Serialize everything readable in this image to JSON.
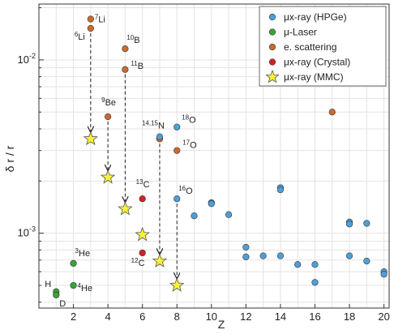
{
  "chart_data": {
    "type": "scatter",
    "xlabel": "Z",
    "ylabel": "δ r / r",
    "xlim": [
      0,
      20.3
    ],
    "ylim": [
      0.00037,
      0.021
    ],
    "yscale": "log",
    "grid": true,
    "x_ticks": [
      2,
      4,
      6,
      8,
      10,
      12,
      14,
      16,
      18,
      20
    ],
    "y_ticks": [
      {
        "value": 0.001,
        "base": "10",
        "exp": "-3"
      },
      {
        "value": 0.01,
        "base": "10",
        "exp": "-2"
      }
    ],
    "legend_position": "top-right",
    "colors": {
      "hpge": "#4e9fd9",
      "laser": "#3aa33a",
      "escatter": "#cc6a2e",
      "crystal": "#d62020",
      "mmc": "#f5f23a",
      "grid": "#e3e3e3",
      "axis": "#333333"
    },
    "series": [
      {
        "key": "hpge",
        "name": "μx-ray (HPGe)",
        "marker": "circle",
        "points": [
          {
            "x": 7,
            "y": 0.0036
          },
          {
            "x": 8,
            "y": 0.0041
          },
          {
            "x": 8,
            "y": 0.00158
          },
          {
            "x": 9,
            "y": 0.00126
          },
          {
            "x": 10,
            "y": 0.0015
          },
          {
            "x": 10,
            "y": 0.00148
          },
          {
            "x": 11,
            "y": 0.00128
          },
          {
            "x": 12,
            "y": 0.00083
          },
          {
            "x": 12,
            "y": 0.00073
          },
          {
            "x": 13,
            "y": 0.00074
          },
          {
            "x": 14,
            "y": 0.00183
          },
          {
            "x": 14,
            "y": 0.00178
          },
          {
            "x": 14,
            "y": 0.00074
          },
          {
            "x": 15,
            "y": 0.00066
          },
          {
            "x": 16,
            "y": 0.00066
          },
          {
            "x": 16,
            "y": 0.00052
          },
          {
            "x": 18,
            "y": 0.00116
          },
          {
            "x": 18,
            "y": 0.00113
          },
          {
            "x": 18,
            "y": 0.00074
          },
          {
            "x": 19,
            "y": 0.00114
          },
          {
            "x": 19,
            "y": 0.00069
          },
          {
            "x": 20,
            "y": 0.0006
          },
          {
            "x": 20,
            "y": 0.00058
          }
        ]
      },
      {
        "key": "laser",
        "name": "μ-Laser",
        "marker": "circle",
        "points": [
          {
            "x": 1,
            "y": 0.00046
          },
          {
            "x": 1,
            "y": 0.00044
          },
          {
            "x": 2,
            "y": 0.00067
          },
          {
            "x": 2,
            "y": 0.0005
          }
        ]
      },
      {
        "key": "escatter",
        "name": "e. scattering",
        "marker": "circle",
        "points": [
          {
            "x": 3,
            "y": 0.0172
          },
          {
            "x": 3,
            "y": 0.0152
          },
          {
            "x": 4,
            "y": 0.0047
          },
          {
            "x": 5,
            "y": 0.0116
          },
          {
            "x": 5,
            "y": 0.0088
          },
          {
            "x": 7,
            "y": 0.0035
          },
          {
            "x": 8,
            "y": 0.003
          },
          {
            "x": 17,
            "y": 0.005
          }
        ]
      },
      {
        "key": "crystal",
        "name": "μx-ray (Crystal)",
        "marker": "circle",
        "points": [
          {
            "x": 6,
            "y": 0.00158
          },
          {
            "x": 6,
            "y": 0.00077
          }
        ]
      },
      {
        "key": "mmc",
        "name": "μx-ray (MMC)",
        "marker": "star",
        "points": [
          {
            "x": 3,
            "y": 0.0035
          },
          {
            "x": 4,
            "y": 0.0021
          },
          {
            "x": 5,
            "y": 0.00138
          },
          {
            "x": 6,
            "y": 0.00098
          },
          {
            "x": 7,
            "y": 0.00069
          },
          {
            "x": 8,
            "y": 0.0005
          }
        ]
      }
    ],
    "arrows": [
      {
        "x": 3,
        "from": 0.0152,
        "to": 0.0035
      },
      {
        "x": 4,
        "from": 0.0047,
        "to": 0.0021
      },
      {
        "x": 5,
        "from": 0.0088,
        "to": 0.00138
      },
      {
        "x": 7,
        "from": 0.0035,
        "to": 0.00069
      },
      {
        "x": 8,
        "from": 0.00158,
        "to": 0.0005
      }
    ],
    "annotations": [
      {
        "id": "li7",
        "x": 3,
        "y": 0.0172,
        "pre": "",
        "pre_sup": "",
        "sup": "7",
        "base": "Li",
        "dx": 5,
        "dy": 4
      },
      {
        "id": "li6",
        "x": 3,
        "y": 0.0152,
        "pre": "",
        "pre_sup": "",
        "sup": "6",
        "base": "Li",
        "dx": -20,
        "dy": 14
      },
      {
        "id": "b10",
        "x": 5,
        "y": 0.0116,
        "pre": "",
        "pre_sup": "",
        "sup": "10",
        "base": "B",
        "dx": 2,
        "dy": -7
      },
      {
        "id": "b11",
        "x": 5,
        "y": 0.0088,
        "pre": "",
        "pre_sup": "",
        "sup": "11",
        "base": "B",
        "dx": 7,
        "dy": -1
      },
      {
        "id": "be9",
        "x": 4,
        "y": 0.0047,
        "pre": "",
        "pre_sup": "",
        "sup": "9",
        "base": "Be",
        "dx": -8,
        "dy": -14
      },
      {
        "id": "n1415",
        "x": 7,
        "y": 0.0036,
        "pre": "",
        "pre_sup": "",
        "sup": "14,15",
        "base": "N",
        "dx": -22,
        "dy": -10
      },
      {
        "id": "o18",
        "x": 8,
        "y": 0.0041,
        "pre": "",
        "pre_sup": "",
        "sup": "18",
        "base": "O",
        "dx": 6,
        "dy": -5
      },
      {
        "id": "o17",
        "x": 8,
        "y": 0.003,
        "pre": "",
        "pre_sup": "",
        "sup": "17",
        "base": "O",
        "dx": 7,
        "dy": -3
      },
      {
        "id": "c13",
        "x": 6,
        "y": 0.00158,
        "pre": "",
        "pre_sup": "",
        "sup": "13",
        "base": "C",
        "dx": -8,
        "dy": -14
      },
      {
        "id": "o16",
        "x": 8,
        "y": 0.00158,
        "pre": "",
        "pre_sup": "",
        "sup": "16",
        "base": "O",
        "dx": 2,
        "dy": -6
      },
      {
        "id": "c12",
        "x": 6,
        "y": 0.00077,
        "pre": "",
        "pre_sup": "",
        "sup": "12",
        "base": "C",
        "dx": -14,
        "dy": 16
      },
      {
        "id": "he3",
        "x": 2,
        "y": 0.00067,
        "pre": "",
        "pre_sup": "",
        "sup": "3",
        "base": "He",
        "dx": 2,
        "dy": -9
      },
      {
        "id": "h",
        "x": 1,
        "y": 0.00046,
        "pre": "",
        "pre_sup": "",
        "sup": "",
        "base": "H",
        "dx": -14,
        "dy": -6
      },
      {
        "id": "d",
        "x": 1,
        "y": 0.00044,
        "pre": "",
        "pre_sup": "",
        "sup": "",
        "base": "D",
        "dx": 4,
        "dy": 14
      },
      {
        "id": "he4",
        "x": 2,
        "y": 0.0005,
        "pre": "",
        "pre_sup": "",
        "sup": "4",
        "base": "He",
        "dx": 5,
        "dy": 7
      }
    ]
  }
}
